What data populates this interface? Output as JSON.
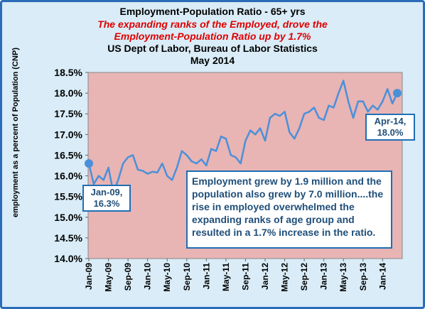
{
  "header": {
    "title": "Employment-Population Ratio - 65+ yrs",
    "subtitle_line1": "The expanding ranks of the Employed, drove the",
    "subtitle_line2": "Employment-Population Ratio up by 1.7%",
    "source": "US Dept of Labor, Bureau of Labor Statistics",
    "date": "May 2014"
  },
  "callouts": {
    "start_line1": "Jan-09,",
    "start_line2": "16.3%",
    "end_line1": "Apr-14,",
    "end_line2": "18.0%"
  },
  "note": "Employment grew by 1.9 million and the population also grew by 7.0 million....the  rise in employed overwhelmed the expanding ranks of age group and resulted in  a 1.7% increase  in the ratio.",
  "colors": {
    "plot_bg": "#e8b4b4",
    "line": "#4a90d9",
    "frame": "#2b6cb8",
    "outer_bg": "#d9ecf7",
    "subtitle": "#e00000"
  },
  "chart_data": {
    "type": "line",
    "title": "Employment-Population Ratio - 65+ yrs",
    "ylabel": "employment as a percent of Population (CNP)",
    "xlabel": "",
    "ylim": [
      14.0,
      18.5
    ],
    "y_ticks": [
      "14.0%",
      "14.5%",
      "15.0%",
      "15.5%",
      "16.0%",
      "16.5%",
      "17.0%",
      "17.5%",
      "18.0%",
      "18.5%"
    ],
    "x_tick_labels": [
      "Jan-09",
      "May-09",
      "Sep-09",
      "Jan-10",
      "May-10",
      "Sep-10",
      "Jan-11",
      "May-11",
      "Sep-11",
      "Jan-12",
      "May-12",
      "Sep-12",
      "Jan-13",
      "May-13",
      "Sep-13",
      "Jan-14"
    ],
    "x_start": "Jan-09",
    "x_end": "Apr-14",
    "grid": false,
    "series": [
      {
        "values": [
          16.3,
          15.8,
          16.0,
          15.9,
          16.2,
          15.6,
          15.9,
          16.3,
          16.45,
          16.5,
          16.15,
          16.12,
          16.05,
          16.1,
          16.08,
          16.3,
          16.0,
          15.9,
          16.2,
          16.6,
          16.5,
          16.35,
          16.3,
          16.4,
          16.25,
          16.65,
          16.6,
          16.95,
          16.9,
          16.5,
          16.45,
          16.3,
          16.85,
          17.1,
          17.0,
          17.15,
          16.85,
          17.4,
          17.5,
          17.45,
          17.55,
          17.05,
          16.9,
          17.15,
          17.5,
          17.55,
          17.65,
          17.4,
          17.35,
          17.7,
          17.65,
          18.0,
          18.3,
          17.8,
          17.4,
          17.8,
          17.8,
          17.55,
          17.7,
          17.6,
          17.8,
          18.1,
          17.75,
          18.0
        ]
      }
    ]
  }
}
